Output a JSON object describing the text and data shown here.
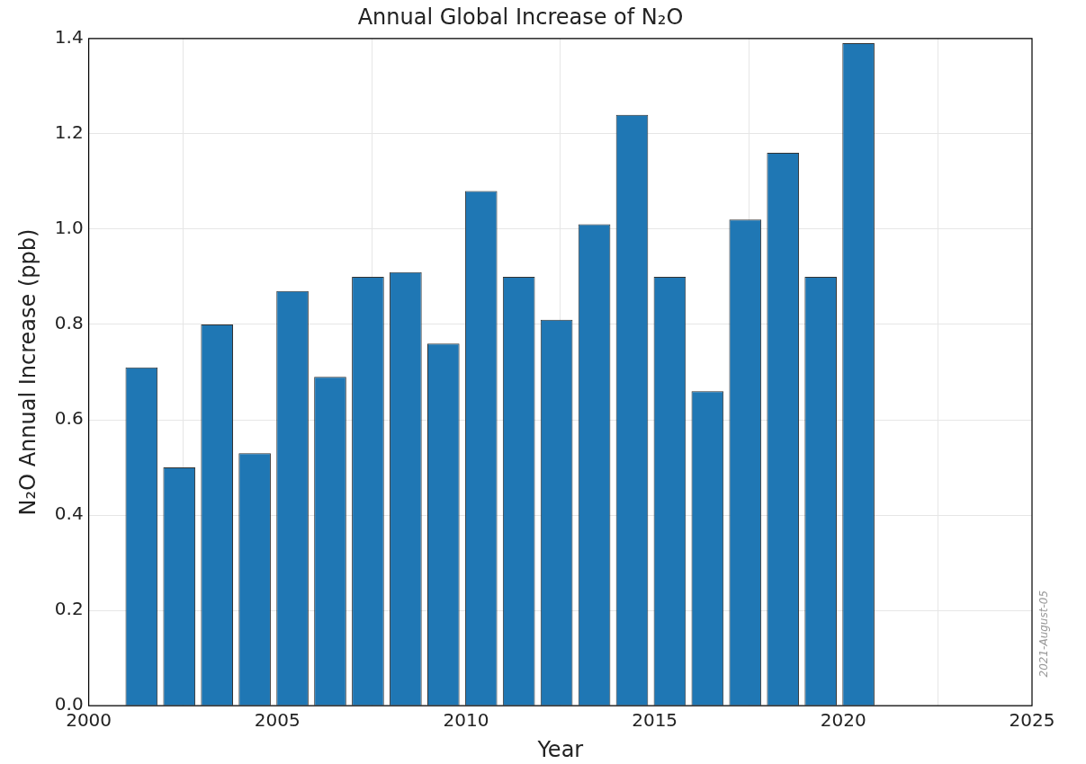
{
  "chart_data": {
    "type": "bar",
    "title": "Annual Global Increase of N₂O",
    "xlabel": "Year",
    "ylabel": "N₂O Annual Increase (ppb)",
    "x": [
      2001.4,
      2002.4,
      2003.4,
      2004.4,
      2005.4,
      2006.4,
      2007.4,
      2008.4,
      2009.4,
      2010.4,
      2011.4,
      2012.4,
      2013.4,
      2014.4,
      2015.4,
      2016.4,
      2017.4,
      2018.4,
      2019.4,
      2020.4
    ],
    "values": [
      0.71,
      0.5,
      0.8,
      0.53,
      0.87,
      0.69,
      0.9,
      0.91,
      0.76,
      1.08,
      0.9,
      0.81,
      1.01,
      1.24,
      0.9,
      0.66,
      1.02,
      1.16,
      0.9,
      1.39
    ],
    "color": "#1f77b4",
    "xlim": [
      2000,
      2025
    ],
    "xticks": [
      2000,
      2005,
      2010,
      2015,
      2020,
      2025
    ],
    "ylim": [
      0,
      1.4
    ],
    "yticks": [
      {
        "value": 0,
        "label": "0.0"
      },
      0.2,
      0.4,
      0.6,
      0.8,
      {
        "value": 1,
        "label": "1.0"
      },
      1.2,
      1.4
    ],
    "grid": true,
    "legend": false,
    "annotations": [
      "2021-August-05"
    ]
  }
}
